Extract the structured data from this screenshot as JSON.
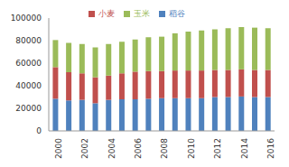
{
  "chart_data": {
    "type": "bar",
    "stacked": true,
    "legend": "top",
    "grid": false,
    "categories": [
      "2000",
      null,
      "2002",
      null,
      "2004",
      null,
      "2006",
      null,
      "2008",
      null,
      "2010",
      null,
      "2012",
      null,
      "2014",
      null,
      "2016"
    ],
    "ylim": [
      0,
      100000
    ],
    "yticks": [
      0,
      20000,
      40000,
      60000,
      80000,
      100000
    ],
    "series": [
      {
        "name": "稻谷",
        "color": "#4f81bd",
        "values": [
          28500,
          27000,
          27500,
          24500,
          27500,
          28000,
          28000,
          28500,
          29000,
          29000,
          29000,
          29000,
          30000,
          30000,
          30500,
          30000,
          30000
        ]
      },
      {
        "name": "小麦",
        "color": "#c0504d",
        "values": [
          28000,
          25000,
          23500,
          23000,
          21500,
          23000,
          24500,
          24500,
          24000,
          24500,
          24500,
          24500,
          24000,
          24000,
          24000,
          24000,
          24000
        ]
      },
      {
        "name": "玉米",
        "color": "#9bbb59",
        "values": [
          24000,
          26000,
          26000,
          26500,
          28000,
          28000,
          28500,
          30000,
          30500,
          33000,
          34500,
          35500,
          36000,
          37000,
          37500,
          37500,
          37000
        ]
      }
    ]
  }
}
